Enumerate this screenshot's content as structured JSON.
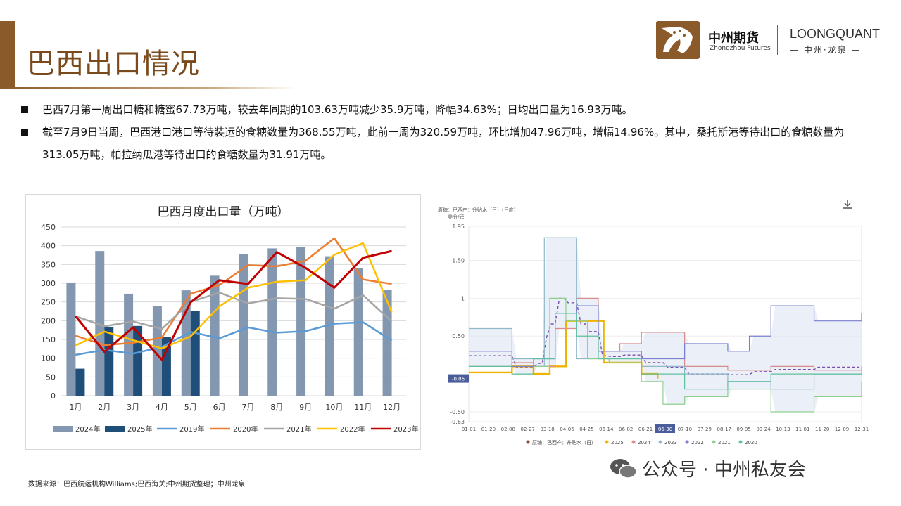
{
  "header": {
    "title": "巴西出口情况",
    "logo_cn": "中州期货",
    "logo_en": "Zhongzhou Futures",
    "brand_en": "LOONGQUANT",
    "brand_cn": "— 中州·龙泉 —"
  },
  "bullets": [
    "巴西7月第一周出口糖和糖蜜67.73万吨，较去年同期的103.63万吨减少35.9万吨，降幅34.63%；日均出口量为16.93万吨。",
    "截至7月9日当周，巴西港口港口等待装运的食糖数量为368.55万吨，此前一周为320.59万吨，环比增加47.96万吨，增幅14.96%。其中，桑托斯港等待出口的食糖数量为313.05万吨，帕拉纳瓜港等待出口的食糖数量为31.91万吨。"
  ],
  "footer": {
    "source": "数据来源：巴西航运机构Williams;巴西海关;中州期货整理；中州龙泉",
    "watermark": "公众号 · 中州私友会"
  },
  "colors": {
    "2024": "#8497b0",
    "2025": "#1f4e79",
    "2019": "#5b9bd5",
    "2020": "#ed7d31",
    "2021": "#a5a5a5",
    "2022": "#ffc000",
    "2023": "#c00000",
    "brand": "#8b5a2b"
  },
  "chart_data": [
    {
      "type": "bar+line",
      "title": "巴西月度出口量（万吨）",
      "categories": [
        "1月",
        "2月",
        "3月",
        "4月",
        "5月",
        "6月",
        "7月",
        "8月",
        "9月",
        "10月",
        "11月",
        "12月"
      ],
      "ylim": [
        0,
        450
      ],
      "yticks": [
        0,
        50,
        100,
        150,
        200,
        250,
        300,
        350,
        400,
        450
      ],
      "grid": true,
      "legend": "bottom",
      "bar_series": [
        {
          "name": "2024年",
          "values": [
            302,
            386,
            272,
            240,
            281,
            320,
            378,
            393,
            396,
            372,
            340,
            283
          ]
        },
        {
          "name": "2025年",
          "values": [
            72,
            182,
            186,
            156,
            225,
            null,
            null,
            null,
            null,
            null,
            null,
            null
          ]
        }
      ],
      "line_series": [
        {
          "name": "2019年",
          "values": [
            109,
            122,
            112,
            130,
            170,
            153,
            182,
            168,
            172,
            192,
            196,
            147
          ]
        },
        {
          "name": "2020年",
          "values": [
            160,
            135,
            141,
            155,
            272,
            295,
            348,
            345,
            360,
            420,
            310,
            298
          ]
        },
        {
          "name": "2021年",
          "values": [
            212,
            185,
            198,
            178,
            250,
            275,
            246,
            260,
            258,
            232,
            268,
            198
          ]
        },
        {
          "name": "2022年",
          "values": [
            134,
            171,
            148,
            126,
            158,
            238,
            288,
            304,
            308,
            376,
            407,
            222
          ]
        },
        {
          "name": "2023年",
          "values": [
            212,
            117,
            182,
            96,
            249,
            308,
            298,
            383,
            341,
            288,
            368,
            386
          ]
        }
      ]
    },
    {
      "type": "line",
      "title": "原糖：巴西产：升贴水（日）(日度)",
      "ylabel": "美分/磅",
      "x_tick_labels": [
        "01-01",
        "01-20",
        "02-08",
        "02-27",
        "03-18",
        "04-06",
        "04-25",
        "05-14",
        "06-02",
        "06-21",
        "06-30",
        "07-10",
        "07-29",
        "08-17",
        "09-05",
        "09-24",
        "10-13",
        "11-01",
        "11-20",
        "12-09",
        "12-31"
      ],
      "highlighted_x": "06-30",
      "y_tick_labels": [
        "1.95",
        "1.50",
        "1",
        "0.50",
        "-0.50",
        "-0.63"
      ],
      "ylim": [
        -0.63,
        1.95
      ],
      "current_value": "-0.06",
      "legend": "bottom",
      "legend_items": [
        {
          "name": "原糖：巴西产：升贴水（日）",
          "color": "#8c4a3a"
        },
        {
          "name": "2025",
          "color": "#f0b400"
        },
        {
          "name": "2024",
          "color": "#d98c8c"
        },
        {
          "name": "2023",
          "color": "#8fb8c8"
        },
        {
          "name": "2022",
          "color": "#7b7fd0"
        },
        {
          "name": "2021",
          "color": "#8fd08f"
        },
        {
          "name": "2020",
          "color": "#5fc0a0"
        }
      ],
      "series": [
        {
          "name": "2025",
          "x": [
            0,
            40,
            60,
            75,
            90,
            110,
            125,
            145,
            160,
            175
          ],
          "y": [
            0.02,
            0.1,
            0.0,
            0.1,
            0.7,
            0.7,
            0.15,
            0.15,
            0.0,
            -0.06
          ]
        },
        {
          "name": "2024",
          "x": [
            0,
            40,
            60,
            80,
            100,
            120,
            140,
            160,
            200,
            240,
            280,
            320,
            364
          ],
          "y": [
            0.1,
            0.15,
            0.1,
            0.6,
            1.0,
            0.3,
            0.4,
            0.55,
            0.1,
            0.05,
            0.1,
            0.05,
            0.1
          ]
        },
        {
          "name": "2023",
          "x": [
            0,
            40,
            60,
            70,
            80,
            100,
            120,
            160,
            200,
            240,
            280,
            320,
            364
          ],
          "y": [
            0.6,
            0.2,
            0.1,
            1.8,
            1.8,
            0.2,
            0.2,
            0.1,
            0.0,
            -0.1,
            -0.2,
            0.0,
            0.05
          ]
        },
        {
          "name": "2022",
          "x": [
            0,
            40,
            60,
            80,
            100,
            120,
            160,
            200,
            240,
            260,
            280,
            320,
            364
          ],
          "y": [
            0.3,
            0.1,
            0.2,
            0.8,
            0.9,
            0.3,
            0.2,
            0.4,
            0.3,
            0.5,
            0.9,
            0.7,
            0.8
          ]
        },
        {
          "name": "2021",
          "x": [
            0,
            40,
            60,
            75,
            90,
            110,
            130,
            160,
            180,
            200,
            240,
            280,
            320,
            364
          ],
          "y": [
            0.1,
            0.0,
            0.1,
            1.0,
            0.7,
            0.2,
            0.15,
            -0.1,
            -0.4,
            -0.3,
            -0.2,
            -0.5,
            -0.3,
            -0.1
          ]
        },
        {
          "name": "2020",
          "x": [
            0,
            40,
            60,
            80,
            100,
            120,
            160,
            200,
            240,
            280,
            320,
            364
          ],
          "y": [
            0.1,
            0.0,
            0.2,
            0.8,
            0.5,
            0.2,
            0.0,
            -0.2,
            -0.1,
            0.0,
            0.0,
            0.0
          ]
        }
      ]
    }
  ]
}
